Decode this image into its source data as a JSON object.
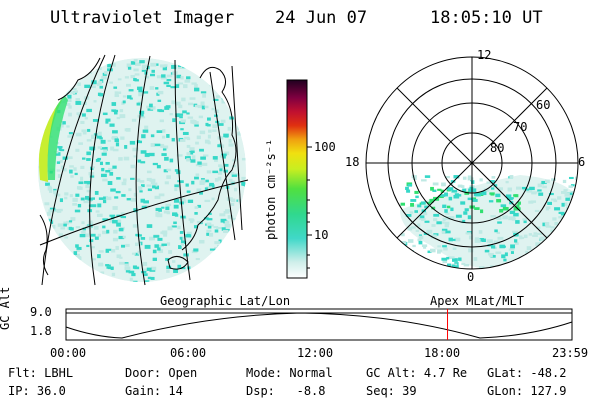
{
  "header": {
    "title": "Ultraviolet Imager",
    "date": "24 Jun 07",
    "time": "18:05:10 UT"
  },
  "colorbar": {
    "unit_label": "photon cm⁻²s⁻¹",
    "ticks": [
      {
        "label": "10",
        "value": 10
      },
      {
        "label": "100",
        "value": 100
      }
    ]
  },
  "left_panel": {
    "caption": "Geographic Lat/Lon"
  },
  "polar_panel": {
    "caption": "Apex MLat/MLT",
    "mlt_labels": {
      "top": "12",
      "left": "18",
      "right": "6",
      "bottom": "0"
    },
    "mlat_labels": [
      {
        "label": "60",
        "value": 60
      },
      {
        "label": "70",
        "value": 70
      },
      {
        "label": "80",
        "value": 80
      }
    ]
  },
  "timeline": {
    "ylabel": "GC Alt",
    "y_ticks": [
      "9.0",
      "1.8"
    ],
    "x_ticks": [
      "00:00",
      "06:00",
      "12:00",
      "18:00",
      "23:59"
    ],
    "marker_time": "18:05",
    "marker_color": "#ff0000"
  },
  "params": {
    "flt_label": "Flt:",
    "flt_value": "LBHL",
    "ip_label": "IP:",
    "ip_value": "36.0",
    "door_label": "Door:",
    "door_value": "Open",
    "gain_label": "Gain:",
    "gain_value": "14",
    "mode_label": "Mode:",
    "mode_value": "Normal",
    "dsp_label": "Dsp:",
    "dsp_value": "-8.8",
    "gcalt_label": "GC Alt:",
    "gcalt_value": "4.7 Re",
    "seq_label": "Seq:",
    "seq_value": "39",
    "glat_label": "GLat:",
    "glat_value": "-48.2",
    "glon_label": "GLon:",
    "glon_value": "127.9"
  },
  "colors": {
    "cyan": "#36d8c8",
    "light_cyan": "#bfe9e4",
    "green": "#30e070",
    "yellow_green": "#c8ee30"
  }
}
